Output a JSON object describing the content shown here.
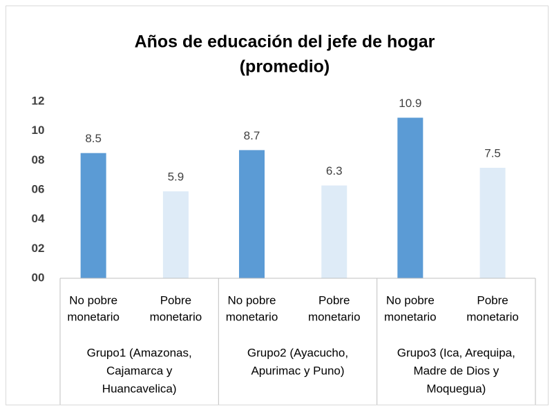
{
  "chart_data": {
    "type": "bar",
    "title": [
      "Años de educación del jefe de hogar",
      "(promedio)"
    ],
    "categories": [
      [
        "No pobre",
        "monetario"
      ],
      [
        "Pobre",
        "monetario"
      ],
      [
        "No pobre",
        "monetario"
      ],
      [
        "Pobre",
        "monetario"
      ],
      [
        "No pobre",
        "monetario"
      ],
      [
        "Pobre",
        "monetario"
      ]
    ],
    "groups": [
      [
        "Grupo1 (Amazonas,",
        "Cajamarca y",
        "Huancavelica)"
      ],
      [
        "Grupo2 (Ayacucho,",
        "Apurimac y Puno)"
      ],
      [
        "Grupo3 (Ica, Arequipa,",
        "Madre de Dios y",
        "Moquegua)"
      ]
    ],
    "values": [
      8.5,
      5.9,
      8.7,
      6.3,
      10.9,
      7.5
    ],
    "colors": [
      "#5b9bd5",
      "#deebf7",
      "#5b9bd5",
      "#deebf7",
      "#5b9bd5",
      "#deebf7"
    ],
    "ylim": [
      0,
      12
    ],
    "yticks": [
      {
        "value": 0,
        "label": "00"
      },
      {
        "value": 2,
        "label": "02"
      },
      {
        "value": 4,
        "label": "04"
      },
      {
        "value": 6,
        "label": "06"
      },
      {
        "value": 8,
        "label": "08"
      },
      10,
      12
    ],
    "grid": false
  }
}
